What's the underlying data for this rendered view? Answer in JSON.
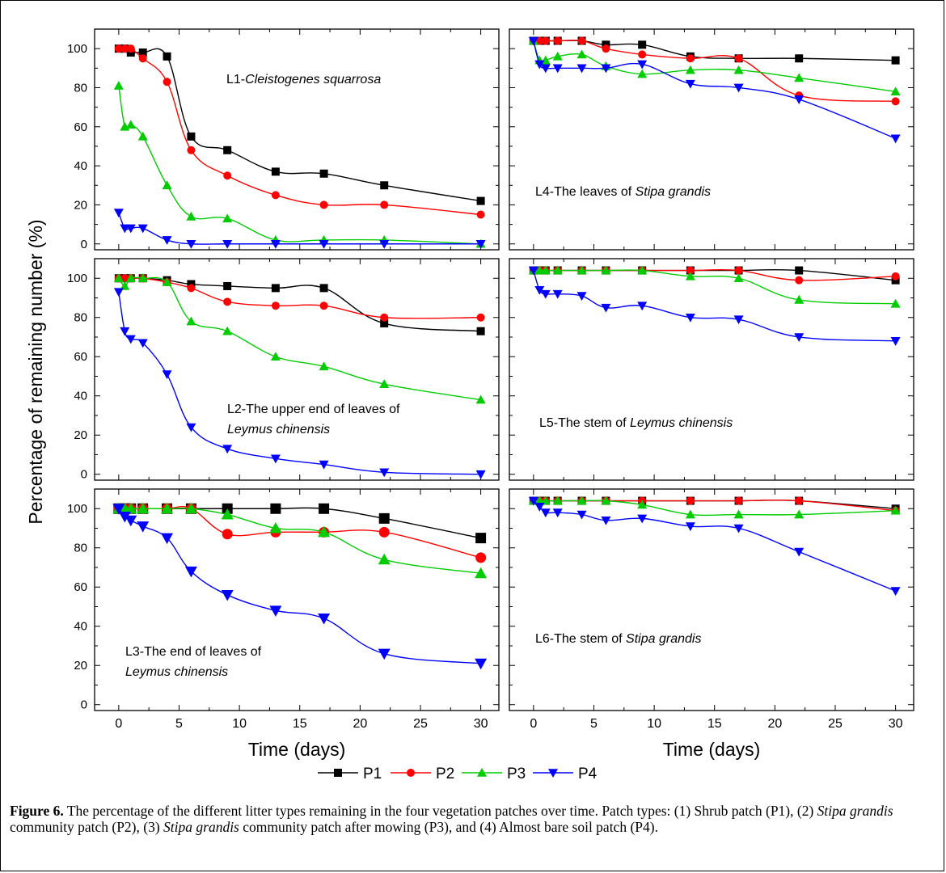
{
  "figure": {
    "ylabel": "Percentage of remaining number  (%)",
    "xlabel": "Time (days)",
    "legend": [
      "P1",
      "P2",
      "P3",
      "P4"
    ],
    "colors": {
      "P1": "#000000",
      "P2": "#ff0000",
      "P3": "#00cc00",
      "P4": "#0000ff"
    },
    "markers": {
      "P1": "square",
      "P2": "circle",
      "P3": "triangle-up",
      "P4": "triangle-down"
    },
    "caption": {
      "label": "Figure 6.",
      "parts": [
        {
          "t": " The percentage of the different litter types remaining in the four vegetation patches over time. Patch types: (1) Shrub patch (P1), (2) ",
          "i": false
        },
        {
          "t": "Stipa grandis",
          "i": true
        },
        {
          "t": " community patch (P2), (3) ",
          "i": false
        },
        {
          "t": "Stipa grandis",
          "i": true
        },
        {
          "t": " community patch after mowing (P3), and (4) Almost bare soil patch (P4).",
          "i": false
        }
      ]
    }
  },
  "chart_data": [
    {
      "id": "L1",
      "type": "line",
      "label_lines": [
        [
          [
            "L1-",
            false
          ],
          [
            "Cleistogenes squarrosa",
            true
          ]
        ]
      ],
      "x": [
        0,
        0.5,
        1,
        2,
        4,
        6,
        9,
        13,
        17,
        22,
        30
      ],
      "ylim": [
        -3,
        110
      ],
      "xlim": [
        -2,
        31.5
      ],
      "yticks": [
        0,
        20,
        40,
        60,
        80,
        100
      ],
      "series": [
        {
          "name": "P1",
          "values": [
            100,
            100,
            98,
            98,
            96,
            55,
            48,
            37,
            36,
            30,
            22
          ]
        },
        {
          "name": "P2",
          "values": [
            100,
            100,
            100,
            95,
            83,
            48,
            35,
            25,
            20,
            20,
            15
          ]
        },
        {
          "name": "P3",
          "values": [
            81,
            60,
            61,
            55,
            30,
            14,
            13,
            2,
            2,
            2,
            0
          ]
        },
        {
          "name": "P4",
          "values": [
            16,
            8,
            8,
            8,
            2,
            0,
            0,
            0,
            0,
            0,
            0
          ]
        }
      ]
    },
    {
      "id": "L4",
      "type": "line",
      "label_lines": [
        [
          [
            "L4-The leaves of ",
            false
          ],
          [
            "Stipa grandis",
            true
          ]
        ]
      ],
      "x": [
        0,
        0.5,
        1,
        2,
        4,
        6,
        9,
        13,
        17,
        22,
        30
      ],
      "ylim": [
        -3,
        110
      ],
      "xlim": [
        -2,
        31.5
      ],
      "yticks": [
        0,
        20,
        40,
        60,
        80,
        100
      ],
      "series": [
        {
          "name": "P1",
          "values": [
            104,
            104,
            104,
            104,
            104,
            102,
            102,
            96,
            95,
            95,
            94
          ]
        },
        {
          "name": "P2",
          "values": [
            104,
            104,
            104,
            104,
            104,
            100,
            97,
            95,
            95,
            76,
            73
          ]
        },
        {
          "name": "P3",
          "values": [
            104,
            94,
            94,
            96,
            97,
            91,
            87,
            89,
            89,
            85,
            78
          ]
        },
        {
          "name": "P4",
          "values": [
            104,
            92,
            90,
            90,
            90,
            90,
            92,
            82,
            80,
            74,
            54
          ]
        }
      ]
    },
    {
      "id": "L2",
      "type": "line",
      "label_lines": [
        [
          [
            "L2-The upper end of leaves of",
            false
          ]
        ],
        [
          [
            "Leymus chinensis",
            true
          ]
        ]
      ],
      "x": [
        0,
        0.5,
        1,
        2,
        4,
        6,
        9,
        13,
        17,
        22,
        30
      ],
      "ylim": [
        -3,
        110
      ],
      "xlim": [
        -2,
        31.5
      ],
      "yticks": [
        0,
        20,
        40,
        60,
        80,
        100
      ],
      "series": [
        {
          "name": "P1",
          "values": [
            100,
            100,
            100,
            100,
            99,
            97,
            96,
            95,
            95,
            77,
            73
          ]
        },
        {
          "name": "P2",
          "values": [
            100,
            100,
            100,
            100,
            98,
            95,
            88,
            86,
            86,
            80,
            80
          ]
        },
        {
          "name": "P3",
          "values": [
            100,
            96,
            100,
            100,
            98,
            78,
            73,
            60,
            55,
            46,
            38
          ]
        },
        {
          "name": "P4",
          "values": [
            93,
            73,
            69,
            67,
            51,
            24,
            13,
            8,
            5,
            1,
            0
          ]
        }
      ]
    },
    {
      "id": "L5",
      "type": "line",
      "label_lines": [
        [
          [
            "L5-The stem of ",
            false
          ],
          [
            "Leymus chinensis",
            true
          ]
        ]
      ],
      "x": [
        0,
        0.5,
        1,
        2,
        4,
        6,
        9,
        13,
        17,
        22,
        30
      ],
      "ylim": [
        -3,
        110
      ],
      "xlim": [
        -2,
        31.5
      ],
      "yticks": [
        0,
        20,
        40,
        60,
        80,
        100
      ],
      "series": [
        {
          "name": "P1",
          "values": [
            104,
            104,
            104,
            104,
            104,
            104,
            104,
            104,
            104,
            104,
            99
          ]
        },
        {
          "name": "P2",
          "values": [
            104,
            104,
            104,
            104,
            104,
            104,
            104,
            104,
            104,
            99,
            101
          ]
        },
        {
          "name": "P3",
          "values": [
            104,
            104,
            104,
            104,
            104,
            104,
            104,
            101,
            100,
            89,
            87
          ]
        },
        {
          "name": "P4",
          "values": [
            104,
            94,
            92,
            92,
            91,
            85,
            86,
            80,
            79,
            70,
            68
          ]
        }
      ]
    },
    {
      "id": "L3",
      "type": "line",
      "label_lines": [
        [
          [
            "L3-The end of leaves of",
            false
          ]
        ],
        [
          [
            "Leymus chinensis",
            true
          ]
        ]
      ],
      "x": [
        0,
        0.5,
        1,
        2,
        4,
        6,
        9,
        13,
        17,
        22,
        30
      ],
      "ylim": [
        -3,
        110
      ],
      "xlim": [
        -2,
        31.5
      ],
      "yticks": [
        0,
        20,
        40,
        60,
        80,
        100
      ],
      "series": [
        {
          "name": "P1",
          "values": [
            100,
            100,
            100,
            100,
            100,
            100,
            100,
            100,
            100,
            95,
            85
          ]
        },
        {
          "name": "P2",
          "values": [
            100,
            100,
            100,
            100,
            100,
            100,
            87,
            88,
            88,
            88,
            75
          ]
        },
        {
          "name": "P3",
          "values": [
            100,
            100,
            100,
            100,
            100,
            100,
            97,
            90,
            88,
            74,
            67
          ]
        },
        {
          "name": "P4",
          "values": [
            100,
            96,
            94,
            91,
            85,
            68,
            56,
            48,
            44,
            26,
            21
          ]
        }
      ]
    },
    {
      "id": "L6",
      "type": "line",
      "label_lines": [
        [
          [
            "L6-The stem of ",
            false
          ],
          [
            "Stipa grandis",
            true
          ]
        ]
      ],
      "x": [
        0,
        0.5,
        1,
        2,
        4,
        6,
        9,
        13,
        17,
        22,
        30
      ],
      "ylim": [
        -3,
        110
      ],
      "xlim": [
        -2,
        31.5
      ],
      "yticks": [
        0,
        20,
        40,
        60,
        80,
        100
      ],
      "series": [
        {
          "name": "P1",
          "values": [
            104,
            104,
            104,
            104,
            104,
            104,
            104,
            104,
            104,
            104,
            100
          ]
        },
        {
          "name": "P2",
          "values": [
            104,
            104,
            104,
            104,
            104,
            104,
            104,
            104,
            104,
            104,
            99
          ]
        },
        {
          "name": "P3",
          "values": [
            104,
            104,
            104,
            104,
            104,
            104,
            102,
            97,
            97,
            97,
            99
          ]
        },
        {
          "name": "P4",
          "values": [
            104,
            101,
            98,
            98,
            97,
            94,
            95,
            91,
            90,
            78,
            58
          ]
        }
      ]
    }
  ]
}
